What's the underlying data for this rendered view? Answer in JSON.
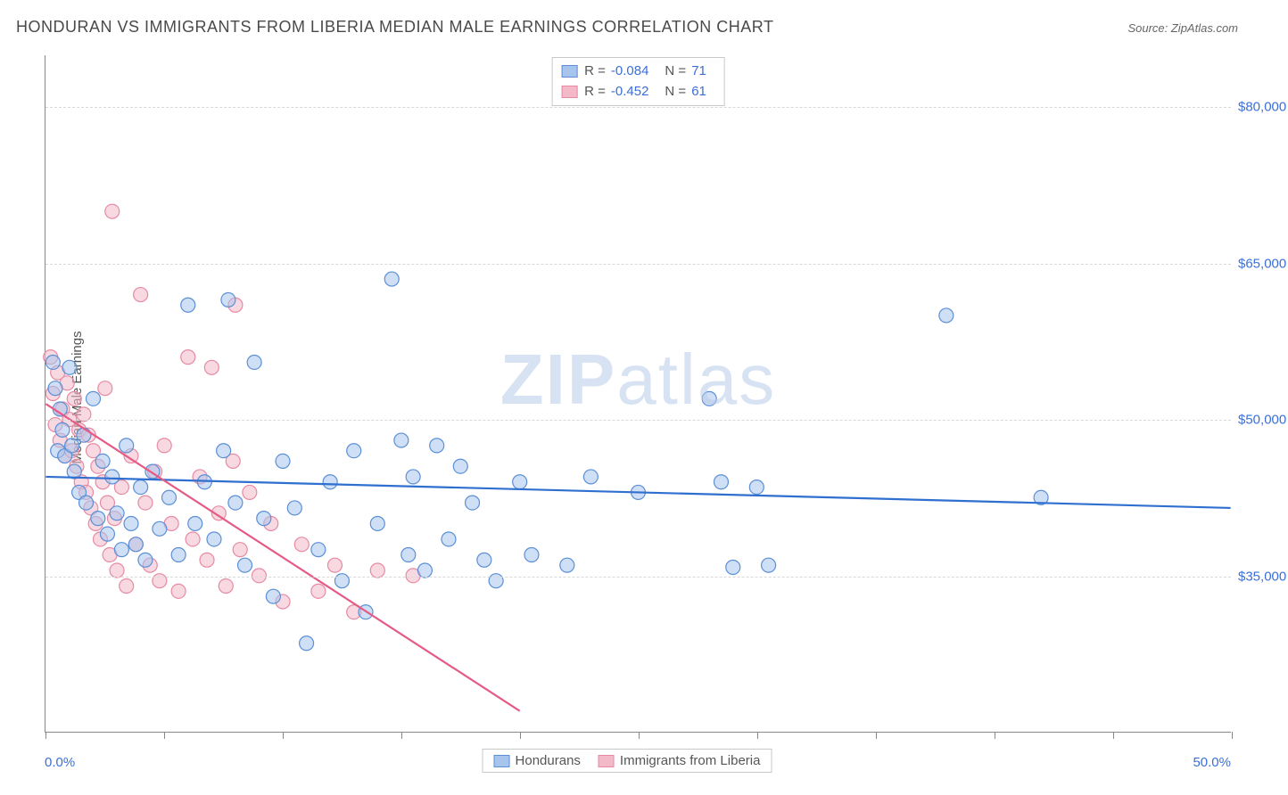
{
  "title": "HONDURAN VS IMMIGRANTS FROM LIBERIA MEDIAN MALE EARNINGS CORRELATION CHART",
  "source": "Source: ZipAtlas.com",
  "watermark": {
    "bold": "ZIP",
    "rest": "atlas"
  },
  "chart": {
    "type": "scatter",
    "background_color": "#ffffff",
    "grid_color": "#d8d8d8",
    "axis_color": "#888888",
    "y_axis_title": "Median Male Earnings",
    "y_axis_title_fontsize": 15,
    "xlim": [
      0,
      50
    ],
    "ylim": [
      20000,
      85000
    ],
    "x_tick_positions": [
      0,
      5,
      10,
      15,
      20,
      25,
      30,
      35,
      40,
      45,
      50
    ],
    "x_label_min": "0.0%",
    "x_label_max": "50.0%",
    "y_ticks": [
      {
        "value": 35000,
        "label": "$35,000"
      },
      {
        "value": 50000,
        "label": "$50,000"
      },
      {
        "value": 65000,
        "label": "$65,000"
      },
      {
        "value": 80000,
        "label": "$80,000"
      }
    ],
    "tick_label_color": "#3b6fd8",
    "tick_label_fontsize": 15,
    "marker_radius": 8,
    "marker_opacity": 0.55,
    "trend_line_width": 2.2,
    "series": [
      {
        "name": "Hondurans",
        "fill_color": "#a7c4ec",
        "stroke_color": "#5b8fd6",
        "trend_color": "#2f6fd0",
        "R": "-0.084",
        "N": "71",
        "trend": {
          "x1": 0,
          "y1": 44500,
          "x2": 50,
          "y2": 41500
        },
        "points": [
          [
            0.3,
            55500
          ],
          [
            0.4,
            53000
          ],
          [
            0.5,
            47000
          ],
          [
            0.6,
            51000
          ],
          [
            0.7,
            49000
          ],
          [
            0.8,
            46500
          ],
          [
            1.0,
            55000
          ],
          [
            1.1,
            47500
          ],
          [
            1.2,
            45000
          ],
          [
            1.4,
            43000
          ],
          [
            1.6,
            48500
          ],
          [
            1.7,
            42000
          ],
          [
            2.0,
            52000
          ],
          [
            2.2,
            40500
          ],
          [
            2.4,
            46000
          ],
          [
            2.6,
            39000
          ],
          [
            2.8,
            44500
          ],
          [
            3.0,
            41000
          ],
          [
            3.2,
            37500
          ],
          [
            3.4,
            47500
          ],
          [
            3.6,
            40000
          ],
          [
            3.8,
            38000
          ],
          [
            4.0,
            43500
          ],
          [
            4.2,
            36500
          ],
          [
            4.5,
            45000
          ],
          [
            4.8,
            39500
          ],
          [
            5.2,
            42500
          ],
          [
            5.6,
            37000
          ],
          [
            6.0,
            61000
          ],
          [
            6.3,
            40000
          ],
          [
            6.7,
            44000
          ],
          [
            7.1,
            38500
          ],
          [
            7.5,
            47000
          ],
          [
            7.7,
            61500
          ],
          [
            8.0,
            42000
          ],
          [
            8.4,
            36000
          ],
          [
            8.8,
            55500
          ],
          [
            9.2,
            40500
          ],
          [
            9.6,
            33000
          ],
          [
            10.0,
            46000
          ],
          [
            10.5,
            41500
          ],
          [
            11.0,
            28500
          ],
          [
            11.5,
            37500
          ],
          [
            12.0,
            44000
          ],
          [
            12.5,
            34500
          ],
          [
            13.0,
            47000
          ],
          [
            13.5,
            31500
          ],
          [
            14.0,
            40000
          ],
          [
            14.6,
            63500
          ],
          [
            15.0,
            48000
          ],
          [
            15.3,
            37000
          ],
          [
            15.5,
            44500
          ],
          [
            16.0,
            35500
          ],
          [
            16.5,
            47500
          ],
          [
            17.0,
            38500
          ],
          [
            17.5,
            45500
          ],
          [
            18.0,
            42000
          ],
          [
            18.5,
            36500
          ],
          [
            19.0,
            34500
          ],
          [
            20.0,
            44000
          ],
          [
            20.5,
            37000
          ],
          [
            22.0,
            36000
          ],
          [
            23.0,
            44500
          ],
          [
            25.0,
            43000
          ],
          [
            28.0,
            52000
          ],
          [
            28.5,
            44000
          ],
          [
            29.0,
            35800
          ],
          [
            30.0,
            43500
          ],
          [
            30.5,
            36000
          ],
          [
            38.0,
            60000
          ],
          [
            42.0,
            42500
          ]
        ]
      },
      {
        "name": "Immigrants from Liberia",
        "fill_color": "#f4b9c8",
        "stroke_color": "#e68aa3",
        "trend_color": "#e65b86",
        "R": "-0.452",
        "N": "61",
        "trend": {
          "x1": 0,
          "y1": 51500,
          "x2": 20,
          "y2": 22000
        },
        "points": [
          [
            0.2,
            56000
          ],
          [
            0.3,
            52500
          ],
          [
            0.4,
            49500
          ],
          [
            0.5,
            54500
          ],
          [
            0.6,
            48000
          ],
          [
            0.7,
            51000
          ],
          [
            0.8,
            46500
          ],
          [
            0.9,
            53500
          ],
          [
            1.0,
            50000
          ],
          [
            1.1,
            47000
          ],
          [
            1.2,
            52000
          ],
          [
            1.3,
            45500
          ],
          [
            1.4,
            49000
          ],
          [
            1.5,
            44000
          ],
          [
            1.6,
            50500
          ],
          [
            1.7,
            43000
          ],
          [
            1.8,
            48500
          ],
          [
            1.9,
            41500
          ],
          [
            2.0,
            47000
          ],
          [
            2.1,
            40000
          ],
          [
            2.2,
            45500
          ],
          [
            2.3,
            38500
          ],
          [
            2.4,
            44000
          ],
          [
            2.5,
            53000
          ],
          [
            2.6,
            42000
          ],
          [
            2.7,
            37000
          ],
          [
            2.8,
            70000
          ],
          [
            2.9,
            40500
          ],
          [
            3.0,
            35500
          ],
          [
            3.2,
            43500
          ],
          [
            3.4,
            34000
          ],
          [
            3.6,
            46500
          ],
          [
            3.8,
            38000
          ],
          [
            4.0,
            62000
          ],
          [
            4.2,
            42000
          ],
          [
            4.4,
            36000
          ],
          [
            4.6,
            45000
          ],
          [
            4.8,
            34500
          ],
          [
            5.0,
            47500
          ],
          [
            5.3,
            40000
          ],
          [
            5.6,
            33500
          ],
          [
            6.0,
            56000
          ],
          [
            6.2,
            38500
          ],
          [
            6.5,
            44500
          ],
          [
            6.8,
            36500
          ],
          [
            7.0,
            55000
          ],
          [
            7.3,
            41000
          ],
          [
            7.6,
            34000
          ],
          [
            7.9,
            46000
          ],
          [
            8.0,
            61000
          ],
          [
            8.2,
            37500
          ],
          [
            8.6,
            43000
          ],
          [
            9.0,
            35000
          ],
          [
            9.5,
            40000
          ],
          [
            10.0,
            32500
          ],
          [
            10.8,
            38000
          ],
          [
            11.5,
            33500
          ],
          [
            12.2,
            36000
          ],
          [
            13.0,
            31500
          ],
          [
            14.0,
            35500
          ],
          [
            15.5,
            35000
          ]
        ]
      }
    ],
    "legend": {
      "border_color": "#c8c8c8",
      "text_color": "#555555",
      "fontsize": 15
    }
  }
}
